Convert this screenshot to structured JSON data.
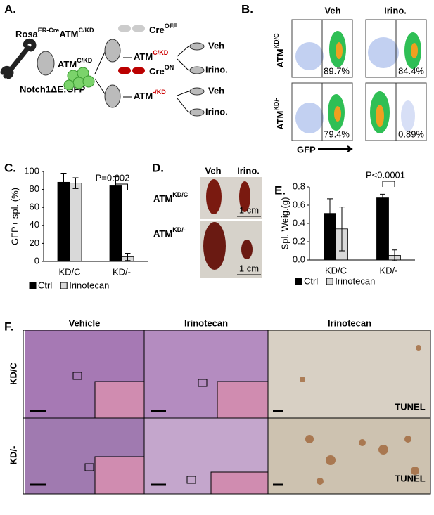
{
  "chart_data": [
    {
      "type": "bar",
      "ylabel": "GFP+ spl. (%)",
      "categories": [
        "KD/C",
        "KD/-"
      ],
      "series": [
        {
          "name": "Ctrl",
          "color": "#000000",
          "values": [
            88,
            84
          ],
          "errors": [
            10,
            10
          ]
        },
        {
          "name": "Irinotecan",
          "color": "#d9d9d9",
          "values": [
            87,
            5
          ],
          "errors": [
            6,
            4
          ]
        }
      ],
      "ylim": [
        0,
        100
      ],
      "yticks": [
        0,
        20,
        40,
        60,
        80,
        100
      ],
      "annotation": "P=0.002",
      "legend": "bottom"
    },
    {
      "type": "bar",
      "ylabel": "Spl. Weig.(g)",
      "categories": [
        "KD/C",
        "KD/-"
      ],
      "series": [
        {
          "name": "Ctrl",
          "color": "#000000",
          "values": [
            0.51,
            0.68
          ],
          "errors": [
            0.16,
            0.04
          ]
        },
        {
          "name": "Irinotecan",
          "color": "#d9d9d9",
          "values": [
            0.34,
            0.05
          ],
          "errors": [
            0.24,
            0.06
          ]
        }
      ],
      "ylim": [
        0,
        0.8
      ],
      "yticks": [
        {
          "value": 0,
          "label": "0.0"
        },
        0.2,
        0.4,
        0.6,
        0.8
      ],
      "annotation": "P<0.0001",
      "legend": "bottom"
    }
  ],
  "panels": {
    "A": {
      "label": "A.",
      "rosa": {
        "base": "Rosa",
        "sup": "ER-Cre"
      },
      "atm": {
        "base": "ATM",
        "sup": "C/KD"
      },
      "notch": "Notch1ΔE:GFP",
      "donor": {
        "base": "ATM",
        "sup": "C/KD"
      },
      "cre_off": {
        "base": "Cre",
        "sup": "OFF"
      },
      "cre_on": {
        "base": "Cre",
        "sup": "ON"
      },
      "upper": {
        "base": "ATM",
        "sup": "C/KD"
      },
      "lower": {
        "base": "ATM",
        "sup": "-/KD"
      },
      "arms": [
        "Veh",
        "Irino.",
        "Veh",
        "Irino."
      ]
    },
    "B": {
      "label": "B.",
      "columns": [
        "Veh",
        "Irino."
      ],
      "rows": [
        {
          "base": "ATM",
          "sup": "KD/C"
        },
        {
          "base": "ATM",
          "sup": "KD/-"
        }
      ],
      "percents": [
        "89.7%",
        "84.4%",
        "79.4%",
        "0.89%"
      ],
      "xaxis": "GFP"
    },
    "C": {
      "label": "C."
    },
    "D": {
      "label": "D.",
      "columns": [
        "Veh",
        "Irino."
      ],
      "rows": [
        {
          "base": "ATM",
          "sup": "KD/C"
        },
        {
          "base": "ATM",
          "sup": "KD/-"
        }
      ],
      "scale": [
        "1 cm",
        "1 cm"
      ]
    },
    "E": {
      "label": "E."
    },
    "F": {
      "label": "F.",
      "columns": [
        "Vehicle",
        "Irinotecan",
        "Irinotecan"
      ],
      "rows": [
        "KD/C",
        "KD/-"
      ],
      "stain": [
        "TUNEL",
        "TUNEL"
      ]
    }
  }
}
